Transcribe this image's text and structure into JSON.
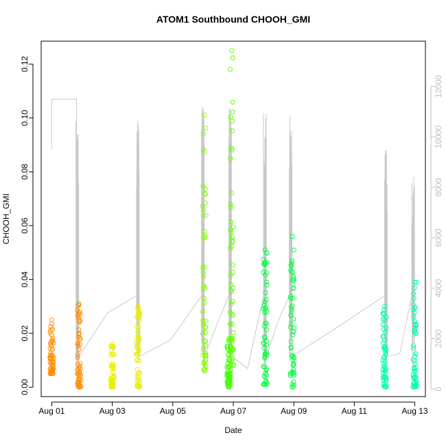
{
  "chart_data": {
    "type": "scatter",
    "title": "ATOM1 Southbound CHOOH_GMI",
    "xlabel": "Date",
    "ylabel": "CHOOH_GMI",
    "x_ticks": [
      "Aug 01",
      "Aug 03",
      "Aug 05",
      "Aug 07",
      "Aug 09",
      "Aug 11",
      "Aug 13"
    ],
    "x_tick_days": [
      1,
      3,
      5,
      7,
      9,
      11,
      13
    ],
    "xlim_days": [
      0.65,
      13.35
    ],
    "ylim": [
      -0.0035,
      0.1285
    ],
    "y_ticks": [
      0.0,
      0.02,
      0.04,
      0.06,
      0.08,
      0.1,
      0.12
    ],
    "y_tick_labels": [
      "0.00",
      "0.02",
      "0.04",
      "0.06",
      "0.08",
      "0.10",
      "0.12"
    ],
    "y2_ticks": [
      0,
      2000,
      4000,
      6000,
      8000,
      10000,
      12000
    ],
    "y2_tick_labels": [
      "0",
      "2000",
      "4000",
      "6000",
      "8000",
      "10000",
      "12000"
    ],
    "y2lim": [
      -300,
      13800
    ],
    "grid": false,
    "series": [
      {
        "color": "#FF8C00",
        "x_days": 1.0,
        "y_min": 0.005,
        "y_max": 0.025
      },
      {
        "color": "#FF8C00",
        "x_days": 1.9,
        "y_min": 0.0,
        "y_max": 0.031
      },
      {
        "color": "#E8F000",
        "x_days": 3.0,
        "y_min": 0.0,
        "y_max": 0.016
      },
      {
        "color": "#E8F000",
        "x_days": 3.85,
        "y_min": 0.0,
        "y_max": 0.03
      },
      {
        "color": "#80FF00",
        "x_days": 6.05,
        "y_min": 0.006,
        "y_max": 0.101
      },
      {
        "color": "#40FF00",
        "x_days": 6.85,
        "y_min": 0.0,
        "y_max": 0.018
      },
      {
        "color": "#60FF00",
        "x_days": 6.95,
        "y_min": 0.008,
        "y_max": 0.125
      },
      {
        "color": "#00FF40",
        "x_days": 8.05,
        "y_min": 0.001,
        "y_max": 0.051
      },
      {
        "color": "#00FF40",
        "x_days": 8.95,
        "y_min": 0.0,
        "y_max": 0.056
      },
      {
        "color": "#00FFB0",
        "x_days": 12.0,
        "y_min": 0.0,
        "y_max": 0.03
      },
      {
        "color": "#00FFB0",
        "x_days": 13.0,
        "y_min": 0.0,
        "y_max": 0.039
      }
    ],
    "altitude_line_color": "#C8C8C8",
    "altitude_spikes": [
      {
        "x_days": 1.85,
        "top": 10900
      },
      {
        "x_days": 3.85,
        "top": 10800
      },
      {
        "x_days": 6.0,
        "top": 11400
      },
      {
        "x_days": 6.9,
        "top": 11700
      },
      {
        "x_days": 8.05,
        "top": 11000
      },
      {
        "x_days": 8.9,
        "top": 10900
      },
      {
        "x_days": 12.05,
        "top": 9700
      },
      {
        "x_days": 12.95,
        "top": 8500
      }
    ]
  }
}
